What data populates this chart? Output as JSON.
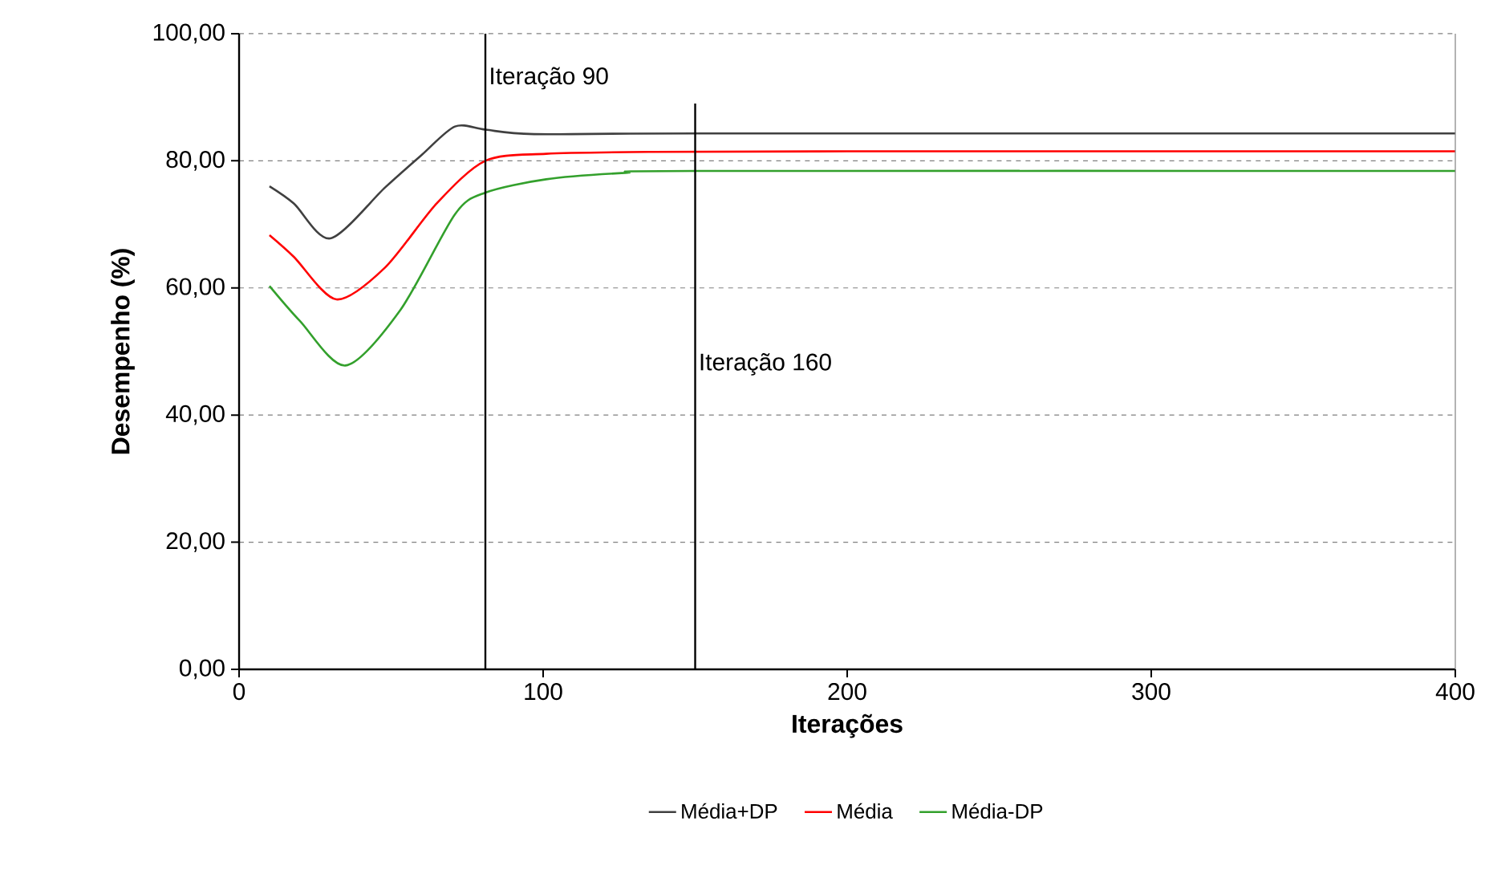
{
  "chart_data": {
    "type": "line",
    "xlabel": "Iterações",
    "ylabel": "Desempenho (%)",
    "xlim": [
      0,
      400
    ],
    "xticks": [
      0,
      100,
      200,
      300,
      400
    ],
    "ylim": [
      0,
      100
    ],
    "yticks": [
      {
        "value": 0,
        "label": "0,00"
      },
      {
        "value": 20,
        "label": "20,00"
      },
      {
        "value": 40,
        "label": "40,00"
      },
      {
        "value": 60,
        "label": "60,00"
      },
      {
        "value": 80,
        "label": "80,00"
      },
      {
        "value": 100,
        "label": "100,00"
      }
    ],
    "grid": "y",
    "legend": "bottom",
    "marker": "none",
    "line_style": "solid",
    "ref_lines": [
      {
        "axis": "x",
        "value": 81,
        "label": "Iteração 90",
        "color": "#000000"
      },
      {
        "axis": "x",
        "value": 150,
        "label": "Iteração 160",
        "color": "#000000"
      }
    ],
    "series": [
      {
        "name": "Média+DP",
        "color": "#404040",
        "x": [
          10,
          18,
          30,
          48,
          60,
          71,
          81,
          97,
          150,
          400
        ],
        "values": [
          76.0,
          73.3,
          67.8,
          75.8,
          80.9,
          85.4,
          84.9,
          84.2,
          84.3,
          84.3
        ]
      },
      {
        "name": "Média",
        "color": "#ff0000",
        "x": [
          10,
          18,
          32,
          48,
          65,
          81,
          101,
          136,
          200,
          400
        ],
        "values": [
          68.3,
          64.9,
          58.2,
          63.2,
          73.3,
          80.0,
          81.1,
          81.4,
          81.5,
          81.5
        ]
      },
      {
        "name": "Média-DP",
        "color": "#33a02c",
        "x": [
          10,
          20,
          35,
          53,
          71,
          81,
          101,
          127,
          150,
          400
        ],
        "values": [
          60.3,
          54.8,
          47.8,
          56.5,
          71.6,
          75.0,
          77.1,
          78.1,
          78.4,
          78.4
        ]
      }
    ]
  }
}
